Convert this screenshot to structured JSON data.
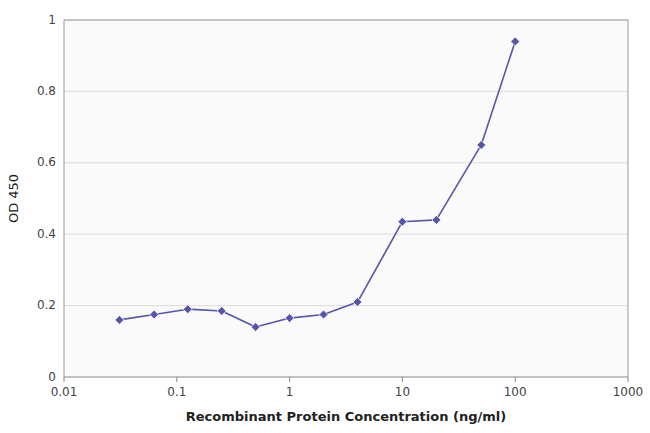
{
  "chart_data": {
    "type": "line",
    "x": [
      0.031,
      0.063,
      0.125,
      0.25,
      0.5,
      1.0,
      2.0,
      4.0,
      10.0,
      20.0,
      50.0,
      100.0
    ],
    "values": [
      0.16,
      0.175,
      0.19,
      0.185,
      0.14,
      0.165,
      0.175,
      0.21,
      0.435,
      0.44,
      0.65,
      0.94
    ],
    "color": "#5555aa",
    "marker": "diamond",
    "xlabel": "Recombinant Protein Concentration (ng/ml)",
    "ylabel": "OD 450",
    "xlim": [
      0.01,
      1000
    ],
    "ylim": [
      0,
      1.0
    ],
    "xticks": [
      0.01,
      0.1,
      1,
      10,
      100,
      1000
    ],
    "yticks": [
      0,
      0.2,
      0.4,
      0.6,
      0.8,
      1
    ],
    "log": "x",
    "grid": true
  }
}
